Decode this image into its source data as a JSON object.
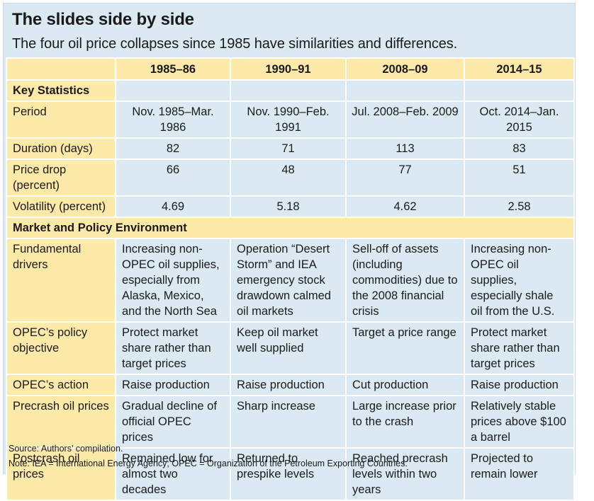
{
  "title": "The slides side by side",
  "subtitle": "The four oil price collapses since 1985 have similarities and differences.",
  "columns": [
    "1985–86",
    "1990–91",
    "2008–09",
    "2014–15"
  ],
  "sections": {
    "key_statistics": "Key Statistics",
    "market_policy": "Market and Policy Environment"
  },
  "stats": [
    {
      "label": "Period",
      "values": [
        "Nov. 1985–Mar. 1986",
        "Nov. 1990–Feb. 1991",
        "Jul. 2008–Feb. 2009",
        "Oct. 2014–Jan. 2015"
      ]
    },
    {
      "label": "Duration (days)",
      "values": [
        "82",
        "71",
        "113",
        "83"
      ]
    },
    {
      "label": "Price drop (percent)",
      "values": [
        "66",
        "48",
        "77",
        "51"
      ]
    },
    {
      "label": "Volatility (percent)",
      "values": [
        "4.69",
        "5.18",
        "4.62",
        "2.58"
      ]
    }
  ],
  "environment": [
    {
      "label": "Fundamental drivers",
      "values": [
        "Increasing non-OPEC oil supplies, especially from Alaska, Mexico, and the North Sea",
        "Operation “Desert Storm” and IEA emergency stock drawdown calmed oil markets",
        "Sell-off of assets (including commodities) due to the 2008 financial crisis",
        "Increasing non-OPEC oil supplies, especially shale oil from the U.S."
      ]
    },
    {
      "label": "OPEC’s policy objective",
      "values": [
        "Protect market share rather than target prices",
        "Keep oil market well supplied",
        "Target a price range",
        "Protect market share rather than target prices"
      ]
    },
    {
      "label": "OPEC’s action",
      "values": [
        "Raise production",
        "Raise production",
        "Cut production",
        "Raise production"
      ]
    },
    {
      "label": "Precrash oil prices",
      "values": [
        "Gradual decline of official OPEC prices",
        "Sharp increase",
        "Large increase prior to the crash",
        "Relatively stable prices above $100 a barrel"
      ]
    },
    {
      "label": "Postcrash oil prices",
      "values": [
        "Remained low for almost two decades",
        "Returned to prespike levels",
        "Reached precrash levels within two years",
        "Projected to remain lower"
      ]
    }
  ],
  "source": "Source: Authors’ compilation.",
  "note": "Note: IEA = International Energy Agency; OPEC = Organization of the Petroleum Exporting Countries."
}
